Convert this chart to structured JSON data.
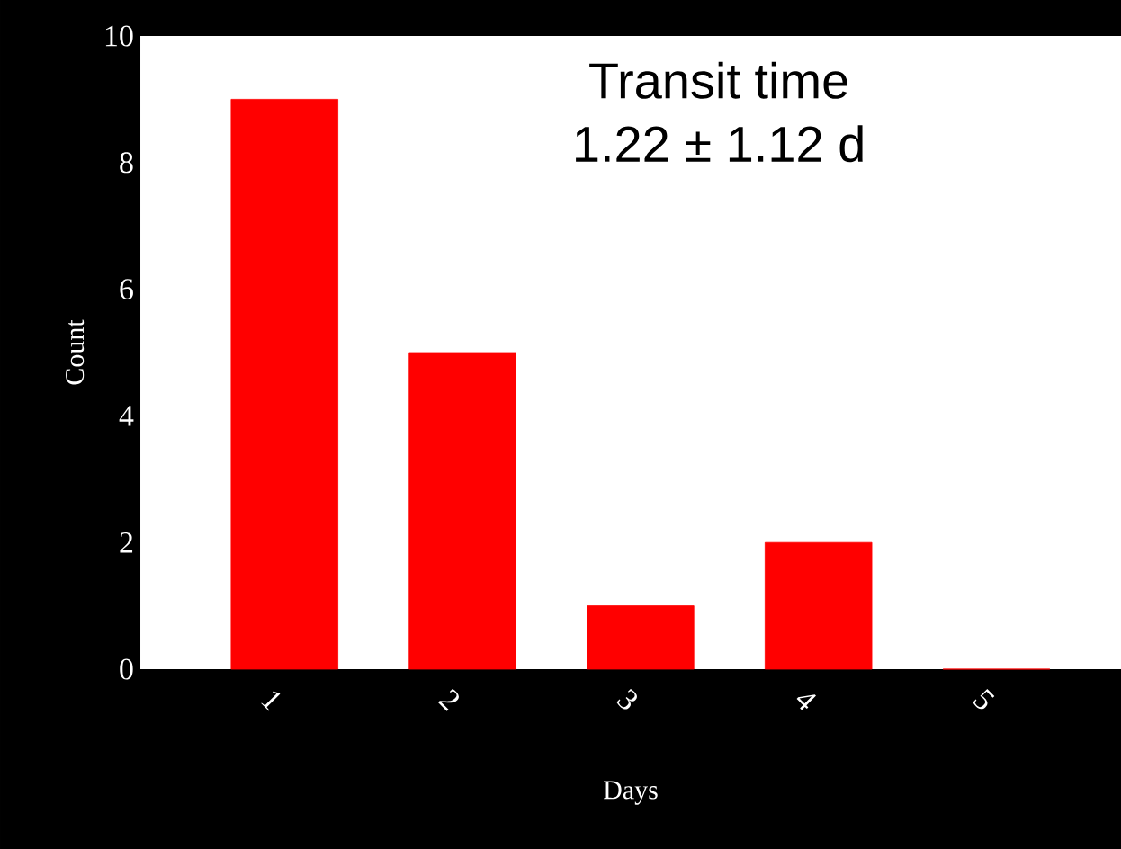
{
  "chart_data": {
    "type": "bar",
    "xlabel": "Days",
    "ylabel": "Count",
    "categories": [
      "1",
      "2",
      "3",
      "4",
      "5"
    ],
    "values": [
      9,
      5,
      1,
      2,
      0
    ],
    "color": "#ff0000",
    "ylim": [
      0,
      10
    ],
    "yticks": [
      0,
      2,
      4,
      6,
      8,
      10
    ],
    "grid": false,
    "annotations": [
      "Transit time",
      "1.22 ± 1.12 d"
    ]
  }
}
